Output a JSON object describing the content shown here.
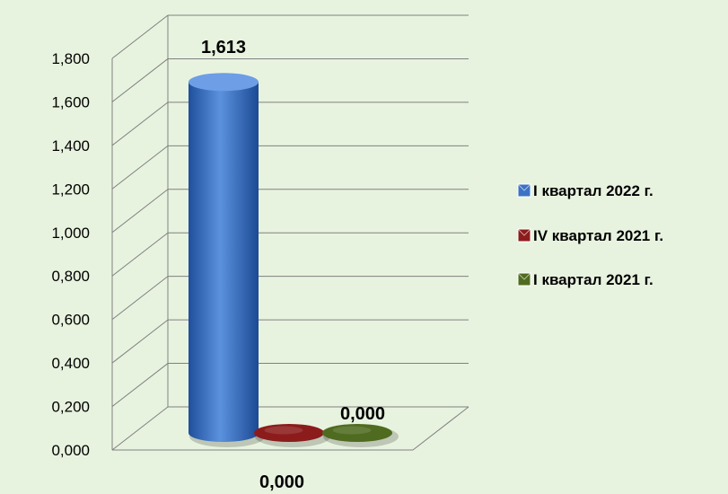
{
  "chart_data": {
    "type": "bar",
    "title": "",
    "xlabel": "",
    "ylabel": "",
    "categories": [
      ""
    ],
    "series": [
      {
        "name": "I квартал 2022 г.",
        "values": [
          1.613
        ],
        "label": "1,613",
        "color": "#3c72c4"
      },
      {
        "name": "IV квартал 2021 г.",
        "values": [
          0.0
        ],
        "label": "0,000",
        "color": "#8c1c1c"
      },
      {
        "name": "I квартал 2021 г.",
        "values": [
          0.0
        ],
        "label": "0,000",
        "color": "#4f6b1f"
      }
    ],
    "yticks": [
      "0,000",
      "0,200",
      "0,400",
      "0,600",
      "0,800",
      "1,000",
      "1,200",
      "1,400",
      "1,600",
      "1,800"
    ],
    "ylim": [
      0,
      1.8
    ],
    "grid": true,
    "legend": "right",
    "style": "3d-cylinder"
  }
}
